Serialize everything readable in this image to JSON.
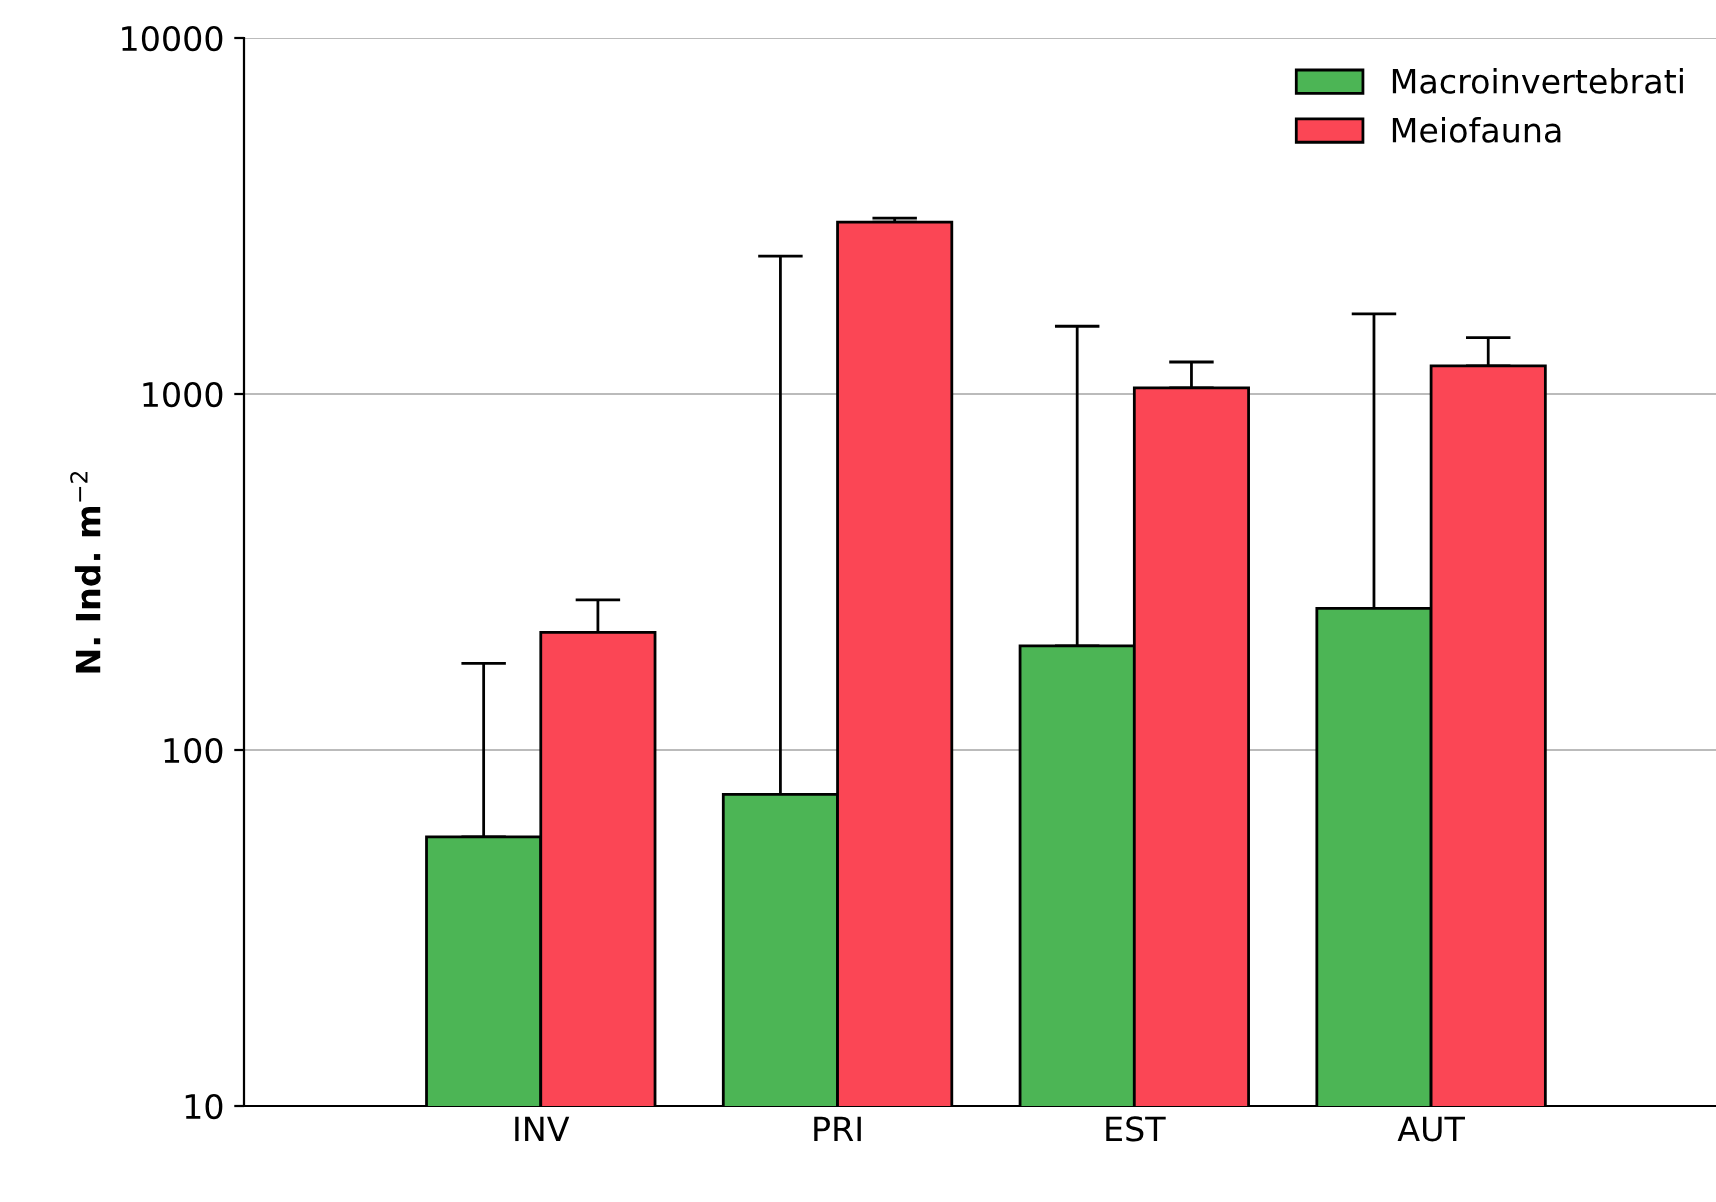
{
  "chart_data": {
    "type": "bar",
    "ylabel": "N. Ind. m$^{−2}$",
    "categories": [
      "INV",
      "PRI",
      "EST",
      "AUT"
    ],
    "series": [
      {
        "name": "Macroinvertebrati",
        "color": "#4cb555",
        "values": [
          57,
          75,
          196,
          250
        ],
        "errors": [
          [
            57,
            175
          ],
          [
            75,
            2440
          ],
          [
            196,
            1550
          ],
          [
            250,
            1680
          ]
        ]
      },
      {
        "name": "Meiofauna",
        "color": "#fb4655",
        "values": [
          214,
          3040,
          1040,
          1200
        ],
        "errors": [
          [
            214,
            264
          ],
          [
            3040,
            3120
          ],
          [
            1040,
            1230
          ],
          [
            1200,
            1440
          ]
        ]
      }
    ],
    "log": "y",
    "ylim": [
      10,
      10000
    ],
    "yticks": [
      10,
      100,
      1000,
      10000
    ],
    "grid": "y",
    "legend": "top right"
  }
}
